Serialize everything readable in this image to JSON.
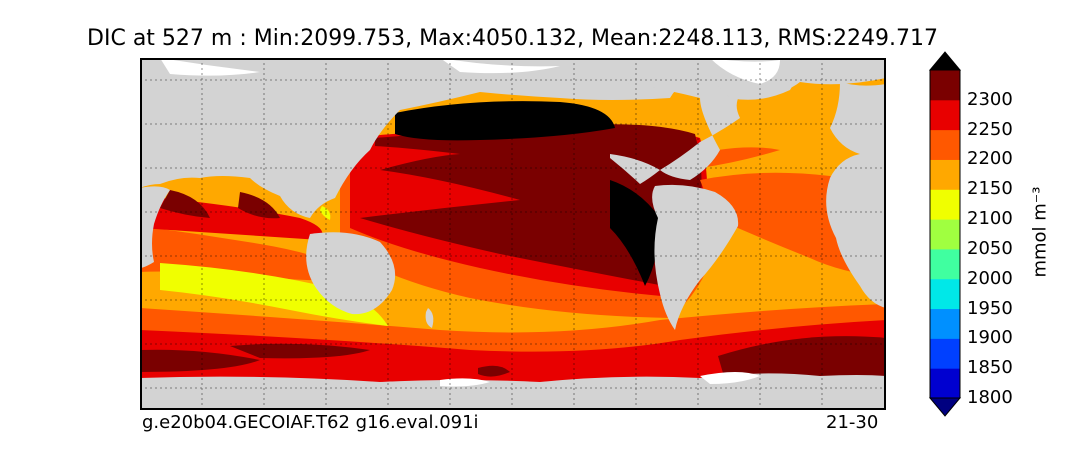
{
  "title": "DIC at 527 m : Min:2099.753, Max:4050.132, Mean:2248.113, RMS:2249.717",
  "footer": {
    "case": "g.e20b04.GECOIAF.T62 g16.eval.091i",
    "years": "21-30"
  },
  "colorbar": {
    "unit": "mmol m⁻³",
    "labels": [
      "2300",
      "2250",
      "2200",
      "2150",
      "2100",
      "2050",
      "2000",
      "1950",
      "1900",
      "1850",
      "1800"
    ],
    "colors": [
      "#000080",
      "#0000d0",
      "#0040ff",
      "#0090ff",
      "#00e8e8",
      "#40ffa0",
      "#a0ff40",
      "#f0ff00",
      "#ffa800",
      "#ff5800",
      "#e80000",
      "#7a0000",
      "#000000"
    ]
  },
  "map_colors": {
    "land": "#d3d3d3",
    "ice": "#ffffff"
  }
}
